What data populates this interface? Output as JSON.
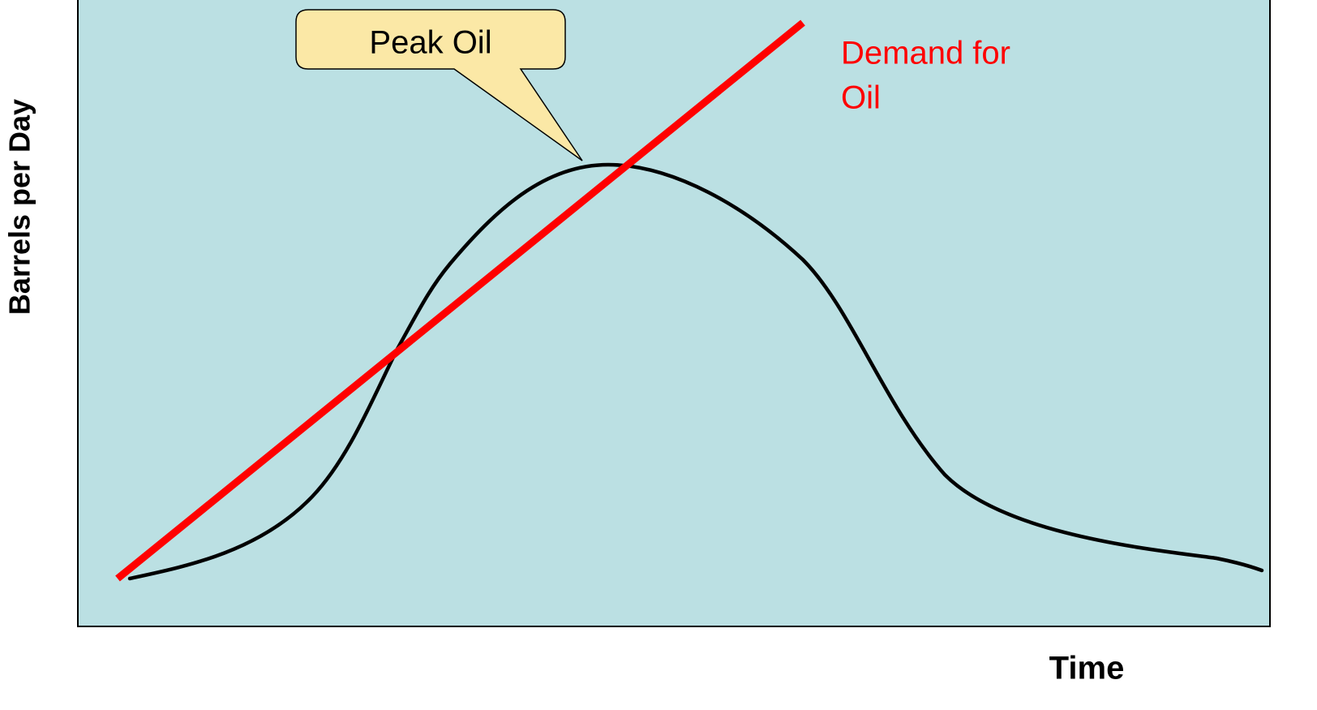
{
  "y_axis_label": "Barrels per Day",
  "x_axis_label": "Time",
  "callout": "Peak Oil",
  "demand_label": [
    "Demand for",
    "Oil"
  ]
}
